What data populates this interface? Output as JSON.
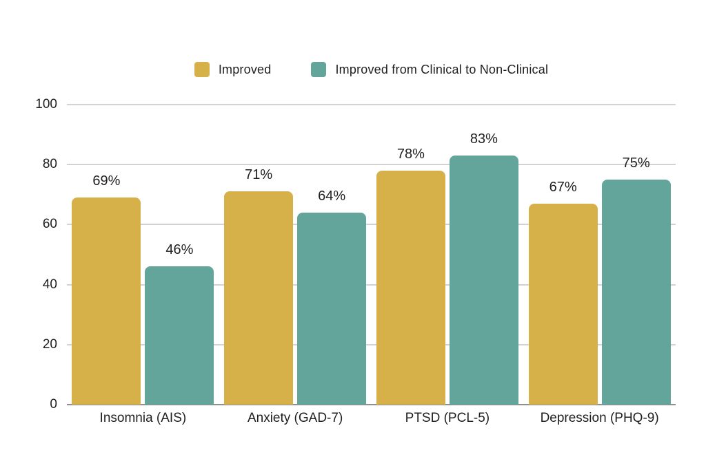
{
  "chart_data": {
    "type": "bar",
    "title": "",
    "xlabel": "",
    "ylabel": "",
    "categories": [
      "Insomnia (AIS)",
      "Anxiety (GAD-7)",
      "PTSD (PCL-5)",
      "Depression (PHQ-9)"
    ],
    "series": [
      {
        "name": "Improved",
        "color": "#d6b14a",
        "values": [
          69,
          71,
          78,
          67
        ],
        "labels": [
          "69%",
          "71%",
          "78%",
          "67%"
        ]
      },
      {
        "name": "Improved from Clinical to Non-Clinical",
        "color": "#64a59b",
        "values": [
          46,
          64,
          83,
          75
        ],
        "labels": [
          "46%",
          "64%",
          "83%",
          "75%"
        ]
      }
    ],
    "y_ticks": [
      0,
      20,
      40,
      60,
      80,
      100
    ],
    "ylim": [
      0,
      100
    ],
    "grid": true,
    "legend_position": "top",
    "value_suffix": "%"
  },
  "colors": {
    "background": "#ffffff",
    "text": "#1f1f1f",
    "gridline": "#d2d2d2",
    "axis_line": "#8f8f8f"
  }
}
